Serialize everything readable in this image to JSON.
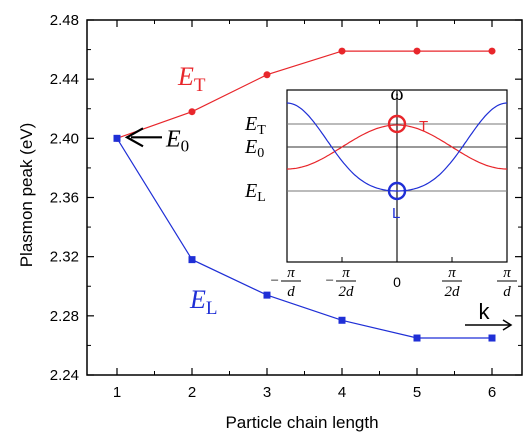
{
  "chart_data": {
    "type": "line",
    "xlabel": "Particle chain length",
    "ylabel": "Plasmon peak (eV)",
    "xlim": [
      0.6,
      6.4
    ],
    "ylim": [
      2.24,
      2.48
    ],
    "xticks": [
      1,
      2,
      3,
      4,
      5,
      6
    ],
    "yticks": [
      2.24,
      2.28,
      2.32,
      2.36,
      2.4,
      2.44,
      2.48
    ],
    "ytick_labels": [
      "2.24",
      "2.28",
      "2.32",
      "2.36",
      "2.40",
      "2.44",
      "2.48"
    ],
    "series": [
      {
        "label_main": "E",
        "label_sub": "T",
        "color": "#e8262b",
        "marker": "circle",
        "x": [
          1,
          2,
          3,
          4,
          5,
          6
        ],
        "values": [
          2.4,
          2.418,
          2.443,
          2.459,
          2.459,
          2.459
        ]
      },
      {
        "label_main": "E",
        "label_sub": "L",
        "color": "#1f2fd6",
        "marker": "square",
        "x": [
          1,
          2,
          3,
          4,
          5,
          6
        ],
        "values": [
          2.4,
          2.318,
          2.294,
          2.277,
          2.265,
          2.265
        ]
      }
    ],
    "annotation": {
      "main": "E",
      "sub": "0",
      "points_to": [
        1,
        2.4
      ]
    },
    "inset": {
      "type": "line",
      "y_axis_label": "ω",
      "x_axis_label": "k",
      "xtick_labels": [
        {
          "sign": "−",
          "num": "π",
          "den": "d"
        },
        {
          "sign": "−",
          "num": "π",
          "den": "2d"
        },
        {
          "sign": "",
          "num": "0",
          "den": ""
        },
        {
          "sign": "",
          "num": "π",
          "den": "2d"
        },
        {
          "sign": "",
          "num": "π",
          "den": "d"
        }
      ],
      "level_labels": [
        {
          "main": "E",
          "sub": "T"
        },
        {
          "main": "E",
          "sub": "0"
        },
        {
          "main": "E",
          "sub": "L"
        }
      ],
      "marker_labels": {
        "top": "T",
        "bottom": "L"
      },
      "curves": [
        {
          "name": "T",
          "color": "#e8262b"
        },
        {
          "name": "L",
          "color": "#1f2fd6"
        }
      ]
    }
  }
}
